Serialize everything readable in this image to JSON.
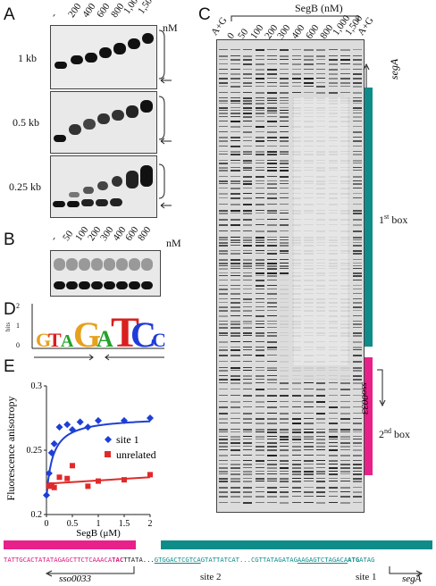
{
  "panels": {
    "A": "A",
    "B": "B",
    "C": "C",
    "D": "D",
    "E": "E"
  },
  "panelA": {
    "concentrations": [
      "-",
      "200",
      "400",
      "600",
      "800",
      "1,000",
      "1,500"
    ],
    "unit": "nM",
    "rows": [
      "1 kb",
      "0.5 kb",
      "0.25 kb"
    ]
  },
  "panelB": {
    "concentrations": [
      "-",
      "50",
      "100",
      "200",
      "300",
      "400",
      "600",
      "800"
    ],
    "unit": "nM"
  },
  "panelC": {
    "header": "SegB (nM)",
    "lanes": [
      "A+G",
      "0",
      "50",
      "100",
      "200",
      "300",
      "400",
      "600",
      "800",
      "1,000",
      "1,500",
      "A+G"
    ],
    "segA": "segA",
    "box1": "1st box",
    "box1_sup": "st",
    "sso": "sso0033",
    "box2": "2nd box",
    "box2_sup": "nd",
    "colors": {
      "teal": "#0e8c8a",
      "magenta": "#e8208a"
    }
  },
  "panelD": {
    "ylabel": "bits",
    "ytick_top": "2",
    "ytick_mid": "1",
    "ytick_bot": "0"
  },
  "chart_data": {
    "type": "scatter",
    "xlabel": "SegB (μM)",
    "ylabel": "Fluorescence anisotropy",
    "xlim": [
      0,
      2
    ],
    "ylim": [
      0.2,
      0.3
    ],
    "xticks": [
      "0",
      "0.5",
      "1",
      "1.5",
      "2"
    ],
    "yticks": [
      "0.2",
      "0.25",
      "0.3"
    ],
    "series": [
      {
        "name": "site 1",
        "color": "#1d3fd6",
        "marker": "diamond",
        "x": [
          0,
          0.05,
          0.1,
          0.15,
          0.25,
          0.4,
          0.5,
          0.65,
          0.8,
          1.0,
          1.5,
          2.0
        ],
        "y": [
          0.215,
          0.232,
          0.248,
          0.255,
          0.268,
          0.27,
          0.266,
          0.272,
          0.268,
          0.273,
          0.273,
          0.275
        ]
      },
      {
        "name": "unrelated",
        "color": "#e02a2a",
        "marker": "square",
        "x": [
          0.05,
          0.1,
          0.15,
          0.25,
          0.4,
          0.5,
          0.8,
          1.0,
          1.5,
          2.0
        ],
        "y": [
          0.222,
          0.223,
          0.221,
          0.229,
          0.228,
          0.238,
          0.222,
          0.226,
          0.227,
          0.231
        ]
      }
    ]
  },
  "sequence": {
    "part1": "TATTGCACTATATAGAGCTTCTCAAACA",
    "part1b": "TAC",
    "part2": "TTATA...",
    "part3": "GTGGACTCGTCA",
    "part4": "GTATTATCAT...CGTTATAGATAG",
    "part5": "AAGAGTCTAGACA",
    "part6": "ATG",
    "part7": "ATAG",
    "site2": "site 2",
    "site1": "site 1",
    "sso": "sso0033",
    "segA": "segA"
  }
}
